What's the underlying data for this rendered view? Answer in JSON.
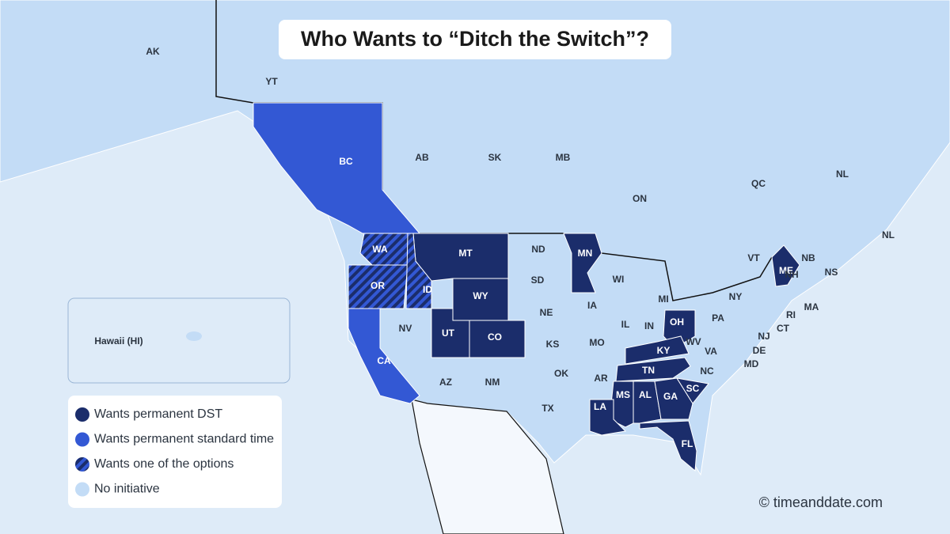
{
  "title": "Who Wants to “Ditch the Switch”?",
  "hawaii_label": "Hawaii (HI)",
  "copyright": "© timeanddate.com",
  "legend": [
    {
      "label": "Wants permanent DST",
      "color": "#1b2d6b",
      "regions": [
        "MT",
        "WY",
        "UT",
        "CO",
        "MN",
        "OH",
        "KY",
        "TN",
        "MS",
        "AL",
        "GA",
        "SC",
        "FL",
        "LA",
        "ME"
      ]
    },
    {
      "label": "Wants permanent standard time",
      "color": "#3358d4",
      "regions": [
        "BC",
        "CA"
      ]
    },
    {
      "label": "Wants one of the options",
      "color": [
        "#1b2d6b",
        "#3358d4"
      ],
      "regions": [
        "WA",
        "OR",
        "ID"
      ]
    },
    {
      "label": "No initiative",
      "color": "#c3dcf6",
      "regions": [
        "AK",
        "YT",
        "AB",
        "SK",
        "MB",
        "ON",
        "QC",
        "NL",
        "NL",
        "NB",
        "NS",
        "VT",
        "ND",
        "SD",
        "NE",
        "KS",
        "OK",
        "TX",
        "NM",
        "AZ",
        "NV",
        "IA",
        "MO",
        "AR",
        "IL",
        "IN",
        "WI",
        "MI",
        "WV",
        "VA",
        "NC",
        "PA",
        "NY",
        "NH",
        "MA",
        "RI",
        "CT",
        "NJ",
        "DE",
        "MD"
      ]
    }
  ]
}
